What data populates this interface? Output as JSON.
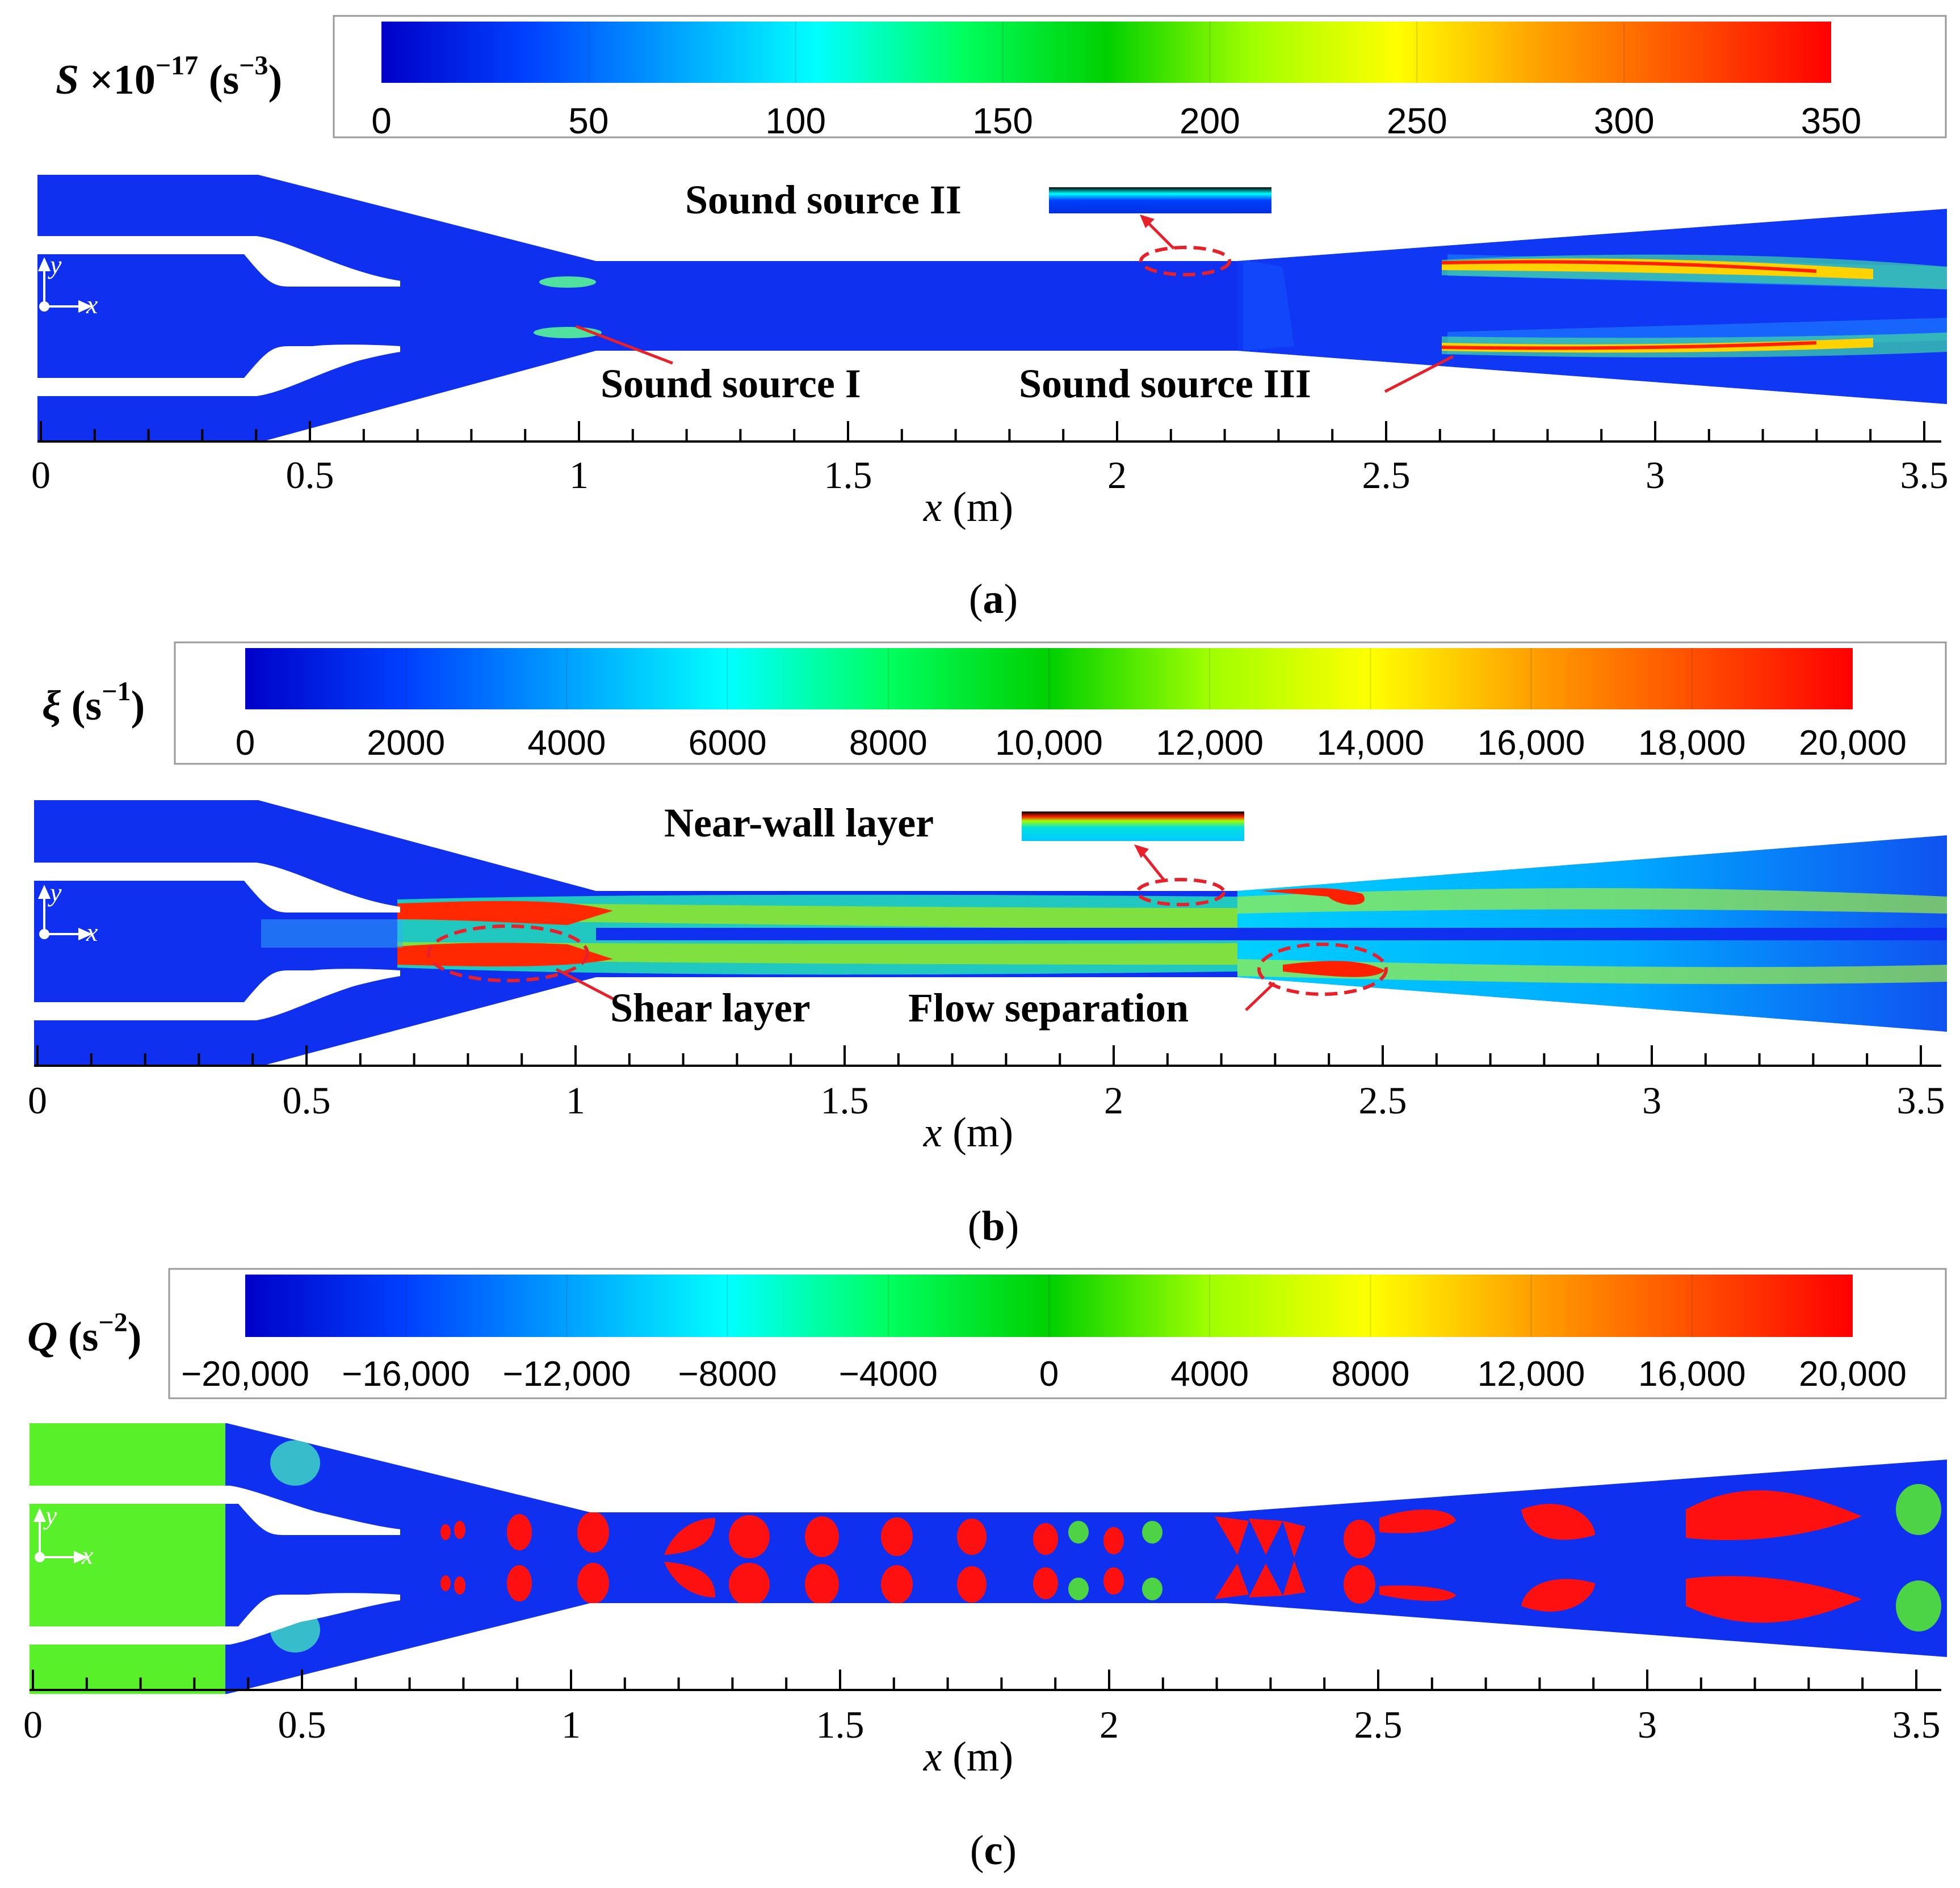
{
  "panels": [
    {
      "id": "a",
      "caption_letter": "a",
      "colorbar": {
        "symbol": "S",
        "label_rest": " ×10",
        "label_exp": "−17",
        "unit_open": " (s",
        "unit_exp": "−3",
        "unit_close": ")",
        "ticks": [
          "0",
          "50",
          "100",
          "150",
          "200",
          "250",
          "300",
          "350"
        ]
      },
      "annotations": {
        "sound_source_2": "Sound source II",
        "sound_source_1": "Sound source I",
        "sound_source_3": "Sound source III"
      },
      "axis": {
        "ticks": [
          "0",
          "0.5",
          "1",
          "1.5",
          "2",
          "2.5",
          "3",
          "3.5"
        ],
        "var": "x",
        "unit": " (m)"
      },
      "coord": {
        "y": "y",
        "x": "x"
      }
    },
    {
      "id": "b",
      "caption_letter": "b",
      "colorbar": {
        "symbol": "ξ",
        "unit_open": " (s",
        "unit_exp": "−1",
        "unit_close": ")",
        "ticks": [
          "0",
          "2000",
          "4000",
          "6000",
          "8000",
          "10,000",
          "12,000",
          "14,000",
          "16,000",
          "18,000",
          "20,000"
        ]
      },
      "annotations": {
        "near_wall": "Near-wall layer",
        "shear_layer": "Shear layer",
        "flow_separation": "Flow separation"
      },
      "axis": {
        "ticks": [
          "0",
          "0.5",
          "1",
          "1.5",
          "2",
          "2.5",
          "3",
          "3.5"
        ],
        "var": "x",
        "unit": " (m)"
      },
      "coord": {
        "y": "y",
        "x": "x"
      }
    },
    {
      "id": "c",
      "caption_letter": "c",
      "colorbar": {
        "symbol": "Q",
        "unit_open": " (s",
        "unit_exp": "−2",
        "unit_close": ")",
        "ticks": [
          "−20,000",
          "−16,000",
          "−12,000",
          "−8000",
          "−4000",
          "0",
          "4000",
          "8000",
          "12,000",
          "16,000",
          "20,000"
        ]
      },
      "axis": {
        "ticks": [
          "0",
          "0.5",
          "1",
          "1.5",
          "2",
          "2.5",
          "3",
          "3.5"
        ],
        "var": "x",
        "unit": " (m)"
      },
      "coord": {
        "y": "y",
        "x": "x"
      }
    }
  ],
  "colors": {
    "jet": [
      "#0000c8",
      "#0040ff",
      "#00a0ff",
      "#00ffff",
      "#00ff60",
      "#00d000",
      "#a0ff00",
      "#ffff00",
      "#ffa000",
      "#ff5000",
      "#ff0000"
    ],
    "annotation": "#e8202a",
    "field_blue": "#1030f0",
    "field_green": "#58f028",
    "field_red": "#ff1010"
  }
}
